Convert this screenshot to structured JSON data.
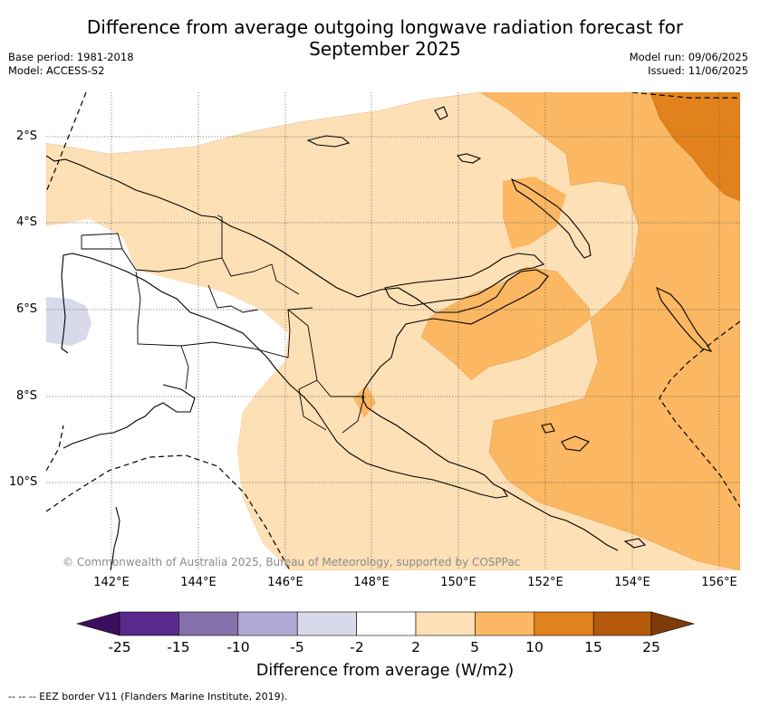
{
  "title": {
    "line1": "Difference from average outgoing longwave radiation forecast for",
    "line2": "September 2025"
  },
  "meta": {
    "base_period": "Base period: 1981-2018",
    "model": "Model: ACCESS-S2",
    "model_run": "Model run: 09/06/2025",
    "issued": "Issued: 11/06/2025"
  },
  "map": {
    "lat_labels": [
      "2°S",
      "4°S",
      "6°S",
      "8°S",
      "10°S"
    ],
    "lon_labels": [
      "142°E",
      "144°E",
      "146°E",
      "148°E",
      "150°E",
      "152°E",
      "154°E",
      "156°E"
    ],
    "copyright": "© Commonwealth of Australia 2025, Bureau of Meteorology, supported by COSPPac"
  },
  "colorbar": {
    "ticks": [
      "-25",
      "-15",
      "-10",
      "-5",
      "-2",
      "2",
      "5",
      "10",
      "15",
      "25"
    ],
    "colors": [
      "#3b0f5e",
      "#5a2a8c",
      "#8470aa",
      "#b1a9d3",
      "#d9d9ec",
      "#ffffff",
      "#fde0b6",
      "#fbb761",
      "#e1821c",
      "#b35909",
      "#7f3b08"
    ],
    "label": "Difference from average (W/m2)"
  },
  "footer": "--  --  -- EEZ border V11 (Flanders Marine Institute, 2019)."
}
